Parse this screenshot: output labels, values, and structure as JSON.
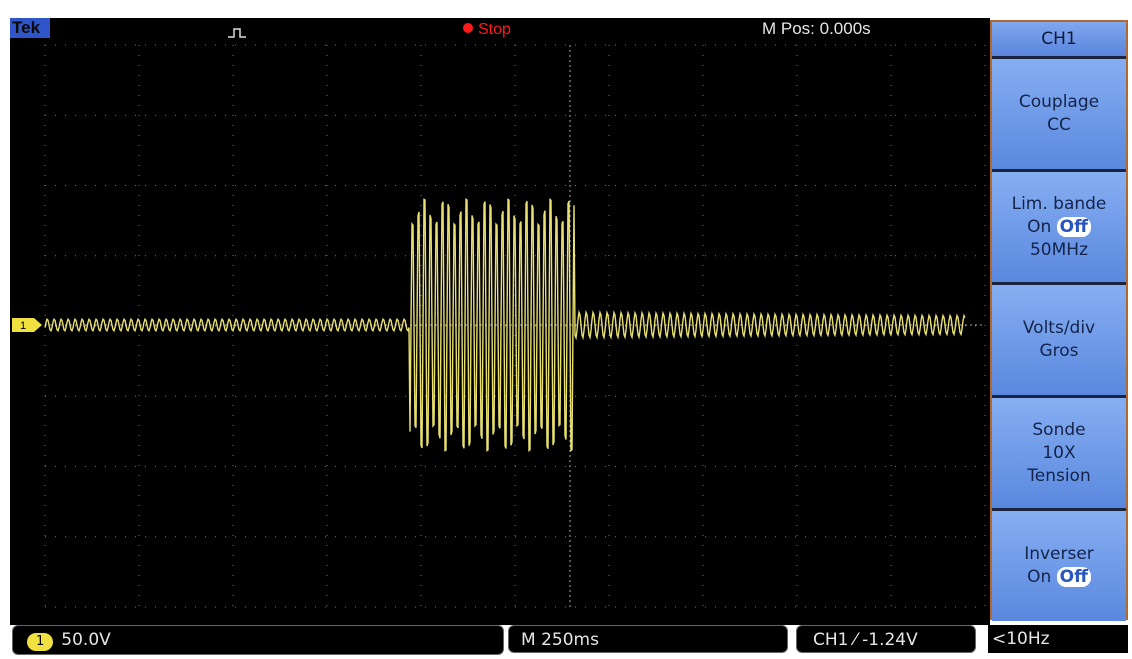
{
  "top_bar": {
    "brand": "Tek",
    "status": "Stop",
    "position": "M Pos: 0.000s"
  },
  "menu": {
    "title": "CH1",
    "buttons": [
      {
        "label": "Couplage",
        "value": "CC"
      },
      {
        "label": "Lim. bande",
        "toggle": [
          "On",
          "Off"
        ],
        "value": "50MHz"
      },
      {
        "label": "Volts/div",
        "value": "Gros"
      },
      {
        "label": "Sonde",
        "value": "10X",
        "detail": "Tension"
      },
      {
        "label": "Inverser",
        "toggle": [
          "On",
          "Off"
        ]
      }
    ]
  },
  "bottom_bar": {
    "channel": "1",
    "volts_div": "50.0V",
    "timebase": "M 250ms",
    "trigger_source": "CH1",
    "trigger_level": "-1.24V",
    "frequency": "<10Hz"
  }
}
